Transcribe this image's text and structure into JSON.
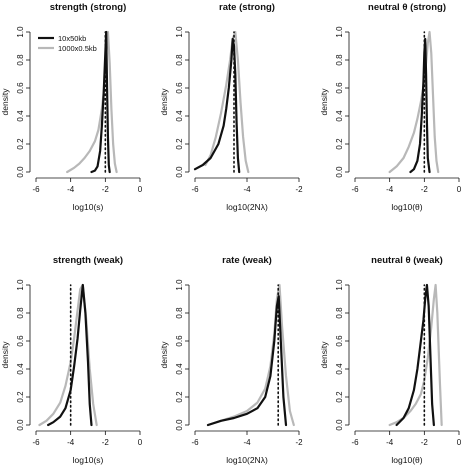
{
  "chart_data": [
    {
      "type": "line",
      "title": "strength (strong)",
      "xlabel": "log10(s)",
      "ylabel": "density",
      "xlim": [
        -6,
        0
      ],
      "ylim": [
        0,
        1
      ],
      "x_ticks": [
        "-6",
        "-4",
        "-2",
        "0"
      ],
      "y_ticks": [
        "0.0",
        "0.2",
        "0.4",
        "0.6",
        "0.8",
        "1.0"
      ],
      "grid": false,
      "legend": {
        "position": "top-left",
        "entries": [
          {
            "label": "10x50kb",
            "color": "#111111"
          },
          {
            "label": "1000x0.5kb",
            "color": "#b8b8b8"
          }
        ]
      },
      "true_value": -2.0,
      "series": [
        {
          "color": "#111111",
          "x": [
            -2.8,
            -2.6,
            -2.45,
            -2.3,
            -2.2,
            -2.1,
            -2.0,
            -1.95,
            -1.9,
            -1.85,
            -1.8,
            -1.75
          ],
          "y": [
            0.0,
            0.01,
            0.04,
            0.15,
            0.33,
            0.55,
            0.85,
            1.0,
            0.6,
            0.25,
            0.05,
            0.0
          ]
        },
        {
          "color": "#b8b8b8",
          "x": [
            -4.2,
            -3.8,
            -3.5,
            -3.2,
            -2.9,
            -2.6,
            -2.4,
            -2.2,
            -2.05,
            -1.95,
            -1.85,
            -1.75,
            -1.65,
            -1.55,
            -1.45,
            -1.35
          ],
          "y": [
            0.0,
            0.03,
            0.06,
            0.1,
            0.15,
            0.22,
            0.3,
            0.45,
            0.62,
            0.85,
            1.0,
            0.78,
            0.45,
            0.2,
            0.06,
            0.0
          ]
        }
      ]
    },
    {
      "type": "line",
      "title": "rate (strong)",
      "xlabel": "log10(2Nλ)",
      "ylabel": "density",
      "xlim": [
        -6,
        -2
      ],
      "ylim": [
        0,
        1
      ],
      "x_ticks": [
        "-6",
        "-4",
        "-2"
      ],
      "y_ticks": [
        "0.0",
        "0.2",
        "0.4",
        "0.6",
        "0.8",
        "1.0"
      ],
      "grid": false,
      "true_value": -4.5,
      "series": [
        {
          "color": "#111111",
          "x": [
            -6.0,
            -5.7,
            -5.4,
            -5.1,
            -4.9,
            -4.8,
            -4.7,
            -4.6,
            -4.55,
            -4.5,
            -4.45,
            -4.4,
            -4.35,
            -4.3
          ],
          "y": [
            0.02,
            0.05,
            0.1,
            0.2,
            0.33,
            0.45,
            0.6,
            0.8,
            0.95,
            0.9,
            0.7,
            0.35,
            0.1,
            0.0
          ]
        },
        {
          "color": "#b8b8b8",
          "x": [
            -5.6,
            -5.4,
            -5.2,
            -5.0,
            -4.8,
            -4.65,
            -4.55,
            -4.45,
            -4.35,
            -4.25,
            -4.15,
            -4.05,
            -3.95
          ],
          "y": [
            0.05,
            0.12,
            0.25,
            0.42,
            0.62,
            0.8,
            0.95,
            1.0,
            0.8,
            0.5,
            0.25,
            0.08,
            0.0
          ]
        }
      ]
    },
    {
      "type": "line",
      "title": "neutral θ (strong)",
      "xlabel": "log10(θ)",
      "ylabel": "density",
      "xlim": [
        -6,
        0
      ],
      "ylim": [
        0,
        1
      ],
      "x_ticks": [
        "-6",
        "-4",
        "-2",
        "0"
      ],
      "y_ticks": [
        "0.0",
        "0.2",
        "0.4",
        "0.6",
        "0.8",
        "1.0"
      ],
      "grid": false,
      "true_value": -2.0,
      "series": [
        {
          "color": "#111111",
          "x": [
            -2.8,
            -2.6,
            -2.4,
            -2.25,
            -2.15,
            -2.05,
            -2.0,
            -1.95,
            -1.9,
            -1.85,
            -1.8,
            -1.7
          ],
          "y": [
            0.0,
            0.02,
            0.08,
            0.2,
            0.4,
            0.65,
            0.85,
            0.95,
            0.7,
            0.35,
            0.1,
            0.0
          ]
        },
        {
          "color": "#b8b8b8",
          "x": [
            -4.0,
            -3.6,
            -3.2,
            -2.9,
            -2.6,
            -2.4,
            -2.2,
            -2.0,
            -1.9,
            -1.8,
            -1.7,
            -1.6,
            -1.5,
            -1.4,
            -1.3,
            -1.2
          ],
          "y": [
            0.0,
            0.04,
            0.1,
            0.18,
            0.28,
            0.38,
            0.5,
            0.65,
            0.78,
            0.92,
            1.0,
            0.85,
            0.55,
            0.25,
            0.08,
            0.0
          ]
        }
      ]
    },
    {
      "type": "line",
      "title": "strength (weak)",
      "xlabel": "log10(s)",
      "ylabel": "density",
      "xlim": [
        -6,
        0
      ],
      "ylim": [
        0,
        1
      ],
      "x_ticks": [
        "-6",
        "-4",
        "-2",
        "0"
      ],
      "y_ticks": [
        "0.0",
        "0.2",
        "0.4",
        "0.6",
        "0.8",
        "1.0"
      ],
      "grid": false,
      "true_value": -4.0,
      "series": [
        {
          "color": "#111111",
          "x": [
            -5.3,
            -5.0,
            -4.6,
            -4.3,
            -4.0,
            -3.8,
            -3.6,
            -3.45,
            -3.3,
            -3.15,
            -3.0,
            -2.9,
            -2.8
          ],
          "y": [
            0.0,
            0.02,
            0.06,
            0.12,
            0.25,
            0.42,
            0.62,
            0.82,
            1.0,
            0.8,
            0.45,
            0.15,
            0.0
          ]
        },
        {
          "color": "#b8b8b8",
          "x": [
            -5.8,
            -5.4,
            -5.0,
            -4.6,
            -4.3,
            -4.0,
            -3.8,
            -3.6,
            -3.45,
            -3.3,
            -3.1,
            -2.9,
            -2.7,
            -2.5
          ],
          "y": [
            0.0,
            0.03,
            0.08,
            0.16,
            0.28,
            0.45,
            0.62,
            0.82,
            0.97,
            1.0,
            0.75,
            0.4,
            0.15,
            0.0
          ]
        }
      ]
    },
    {
      "type": "line",
      "title": "rate (weak)",
      "xlabel": "log10(2Nλ)",
      "ylabel": "density",
      "xlim": [
        -6,
        -2
      ],
      "ylim": [
        0,
        1
      ],
      "x_ticks": [
        "-6",
        "-4",
        "-2"
      ],
      "y_ticks": [
        "0.0",
        "0.2",
        "0.4",
        "0.6",
        "0.8",
        "1.0"
      ],
      "grid": false,
      "true_value": -2.8,
      "series": [
        {
          "color": "#111111",
          "x": [
            -5.5,
            -5.0,
            -4.5,
            -4.0,
            -3.6,
            -3.3,
            -3.1,
            -2.95,
            -2.85,
            -2.78,
            -2.7,
            -2.6,
            -2.5
          ],
          "y": [
            0.0,
            0.03,
            0.05,
            0.08,
            0.12,
            0.2,
            0.35,
            0.6,
            0.85,
            0.92,
            0.6,
            0.2,
            0.0
          ]
        },
        {
          "color": "#b8b8b8",
          "x": [
            -5.5,
            -5.0,
            -4.5,
            -4.0,
            -3.6,
            -3.3,
            -3.1,
            -2.95,
            -2.85,
            -2.75,
            -2.65,
            -2.5,
            -2.35,
            -2.2
          ],
          "y": [
            0.0,
            0.03,
            0.06,
            0.1,
            0.16,
            0.26,
            0.42,
            0.65,
            0.9,
            1.0,
            0.7,
            0.35,
            0.1,
            0.0
          ]
        }
      ]
    },
    {
      "type": "line",
      "title": "neutral θ (weak)",
      "xlabel": "log10(θ)",
      "ylabel": "density",
      "xlim": [
        -6,
        0
      ],
      "ylim": [
        0,
        1
      ],
      "x_ticks": [
        "-6",
        "-4",
        "-2",
        "0"
      ],
      "y_ticks": [
        "0.0",
        "0.2",
        "0.4",
        "0.6",
        "0.8",
        "1.0"
      ],
      "grid": false,
      "true_value": -2.0,
      "series": [
        {
          "color": "#111111",
          "x": [
            -3.6,
            -3.2,
            -2.9,
            -2.6,
            -2.4,
            -2.2,
            -2.05,
            -1.95,
            -1.85,
            -1.75,
            -1.65,
            -1.55,
            -1.45
          ],
          "y": [
            0.0,
            0.05,
            0.12,
            0.25,
            0.4,
            0.6,
            0.75,
            0.9,
            1.0,
            0.85,
            0.5,
            0.15,
            0.0
          ]
        },
        {
          "color": "#b8b8b8",
          "x": [
            -4.0,
            -3.6,
            -3.2,
            -2.8,
            -2.5,
            -2.2,
            -2.0,
            -1.8,
            -1.6,
            -1.45,
            -1.35,
            -1.25,
            -1.1,
            -1.0
          ],
          "y": [
            0.0,
            0.02,
            0.05,
            0.1,
            0.15,
            0.22,
            0.32,
            0.48,
            0.7,
            0.9,
            1.0,
            0.8,
            0.3,
            0.0
          ]
        }
      ]
    }
  ]
}
